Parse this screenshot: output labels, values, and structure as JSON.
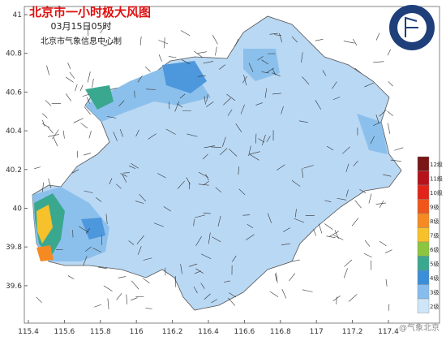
{
  "header": {
    "title": "北京市一小时极大风图",
    "time": "03月15日05时",
    "issuer": "北京市气象信息中心制"
  },
  "map": {
    "lon_ticks": [
      115.4,
      115.6,
      115.8,
      116,
      116.2,
      116.4,
      116.6,
      116.8,
      117,
      117.2,
      117.4
    ],
    "lat_ticks": [
      41,
      40.8,
      40.6,
      40.4,
      40.2,
      40,
      39.8,
      39.6
    ]
  },
  "legend": [
    {
      "label": "12级",
      "color": "#7a1616"
    },
    {
      "label": "11级",
      "color": "#b5121b"
    },
    {
      "label": "10级",
      "color": "#e2231a"
    },
    {
      "label": "9级",
      "color": "#f0561b"
    },
    {
      "label": "8级",
      "color": "#f58a22"
    },
    {
      "label": "7级",
      "color": "#f6c12a"
    },
    {
      "label": "6级",
      "color": "#8cc63f"
    },
    {
      "label": "5级",
      "color": "#3aa88f"
    },
    {
      "label": "4级",
      "color": "#3b8fd9"
    },
    {
      "label": "3级",
      "color": "#86bdee"
    },
    {
      "label": "2级",
      "color": "#cfe6f9"
    }
  ],
  "watermark": "@气象北京"
}
